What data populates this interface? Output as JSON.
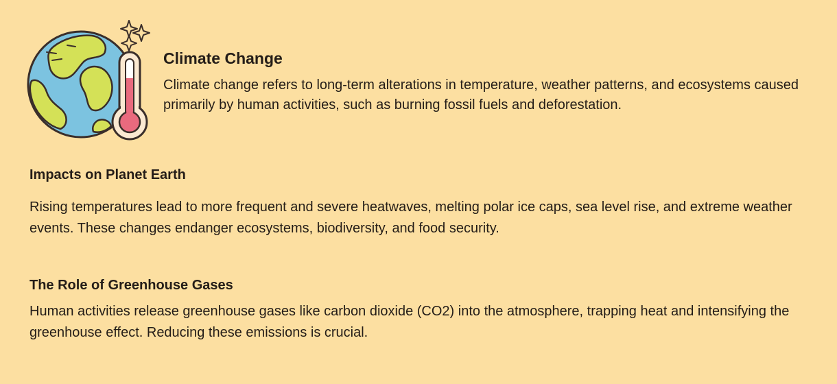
{
  "intro": {
    "icon": "earth-thermometer-icon",
    "title": "Climate Change",
    "text": "Climate change refers to long-term alterations in temperature, weather patterns, and ecosystems caused primarily by human activities, such as burning fossil fuels and deforestation."
  },
  "sections": [
    {
      "heading": "Impacts on Planet Earth",
      "text": "Rising temperatures lead to more frequent and severe heatwaves, melting polar ice caps, sea level rise, and extreme weather events. These changes endanger ecosystems, biodiversity, and food security."
    },
    {
      "heading": "The Role of Greenhouse Gases",
      "text": "Human activities release greenhouse gases like carbon dioxide (CO2) into the atmosphere, trapping heat and intensifying the greenhouse effect. Reducing these emissions is crucial."
    }
  ],
  "colors": {
    "background": "#FCDFA1",
    "ocean": "#7CC3E0",
    "land": "#D4E157",
    "thermometer_fill": "#E96A7E",
    "outline": "#3A2E2A"
  }
}
